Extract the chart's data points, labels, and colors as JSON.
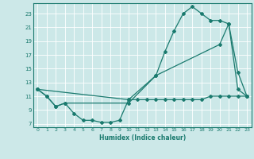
{
  "title": "",
  "xlabel": "Humidex (Indice chaleur)",
  "bg_color": "#cce8e8",
  "grid_color": "#ffffff",
  "line_color": "#1a7a6e",
  "xlim": [
    -0.5,
    23.5
  ],
  "ylim": [
    6.5,
    24.5
  ],
  "xticks": [
    0,
    1,
    2,
    3,
    4,
    5,
    6,
    7,
    8,
    9,
    10,
    11,
    12,
    13,
    14,
    15,
    16,
    17,
    18,
    19,
    20,
    21,
    22,
    23
  ],
  "yticks": [
    7,
    9,
    11,
    13,
    15,
    17,
    19,
    21,
    23
  ],
  "line1_x": [
    0,
    1,
    2,
    3,
    10,
    13,
    14,
    15,
    16,
    17,
    18,
    19,
    20,
    21,
    22,
    23
  ],
  "line1_y": [
    12,
    11,
    9.5,
    10,
    10,
    14,
    17.5,
    20.5,
    23,
    24,
    23,
    22,
    22,
    21.5,
    12,
    11
  ],
  "line2_x": [
    0,
    1,
    2,
    3,
    4,
    5,
    6,
    7,
    8,
    9,
    10,
    11,
    12,
    13,
    14,
    15,
    16,
    17,
    18,
    19,
    20,
    21,
    22,
    23
  ],
  "line2_y": [
    12,
    11,
    9.5,
    10,
    8.5,
    7.5,
    7.5,
    7.2,
    7.2,
    7.5,
    10.5,
    10.5,
    10.5,
    10.5,
    10.5,
    10.5,
    10.5,
    10.5,
    10.5,
    11,
    11,
    11,
    11,
    11
  ],
  "line3_x": [
    0,
    10,
    13,
    20,
    21,
    22,
    23
  ],
  "line3_y": [
    12,
    10.5,
    14,
    18.5,
    21.5,
    14.5,
    11
  ]
}
